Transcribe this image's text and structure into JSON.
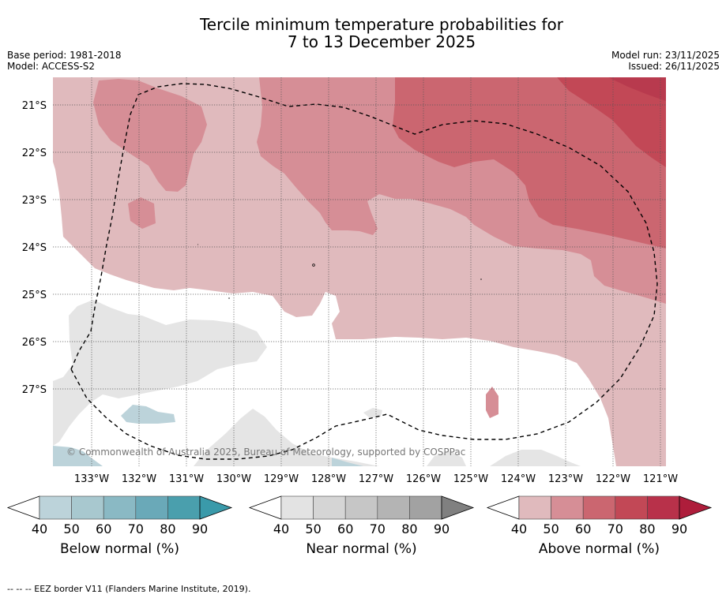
{
  "header": {
    "title_line1": "Tercile minimum temperature probabilities for",
    "title_line2": "7 to 13 December 2025",
    "base_period": "Base period: 1981-2018",
    "model": "Model: ACCESS-S2",
    "model_run": "Model run: 23/11/2025",
    "issued": "Issued: 26/11/2025"
  },
  "map": {
    "lat_labels": [
      "21°S",
      "22°S",
      "23°S",
      "24°S",
      "25°S",
      "26°S",
      "27°S"
    ],
    "lon_labels": [
      "133°W",
      "132°W",
      "131°W",
      "130°W",
      "129°W",
      "128°W",
      "127°W",
      "126°W",
      "125°W",
      "124°W",
      "123°W",
      "122°W",
      "121°W"
    ],
    "copyright": "© Commonwealth of Australia 2025, Bureau of Meteorology, supported by COSPPac",
    "colors": {
      "above_40": "#e0babd",
      "above_50": "#d68e96",
      "above_60": "#cb6670",
      "above_70": "#c24856",
      "near_40": "#e5e5e5",
      "below_40": "#bcd3da"
    }
  },
  "colorbars": [
    {
      "label": "Below normal (%)",
      "ticks": [
        "40",
        "50",
        "60",
        "70",
        "80",
        "90"
      ],
      "colors": [
        "#bcd3da",
        "#a8c8cf",
        "#8ab9c4",
        "#6aa9b8",
        "#4a9fad",
        "#3a9aaa"
      ]
    },
    {
      "label": "Near normal (%)",
      "ticks": [
        "40",
        "50",
        "60",
        "70",
        "80",
        "90"
      ],
      "colors": [
        "#e3e3e3",
        "#d5d5d5",
        "#c6c6c6",
        "#b4b4b4",
        "#a2a2a2",
        "#808080"
      ]
    },
    {
      "label": "Above normal (%)",
      "ticks": [
        "40",
        "50",
        "60",
        "70",
        "80",
        "90"
      ],
      "colors": [
        "#e0babd",
        "#d68e96",
        "#cb6670",
        "#c24856",
        "#b8314a",
        "#ae1d3b"
      ]
    }
  ],
  "footer": "--  --  -- EEZ border V11 (Flanders Marine Institute, 2019)."
}
